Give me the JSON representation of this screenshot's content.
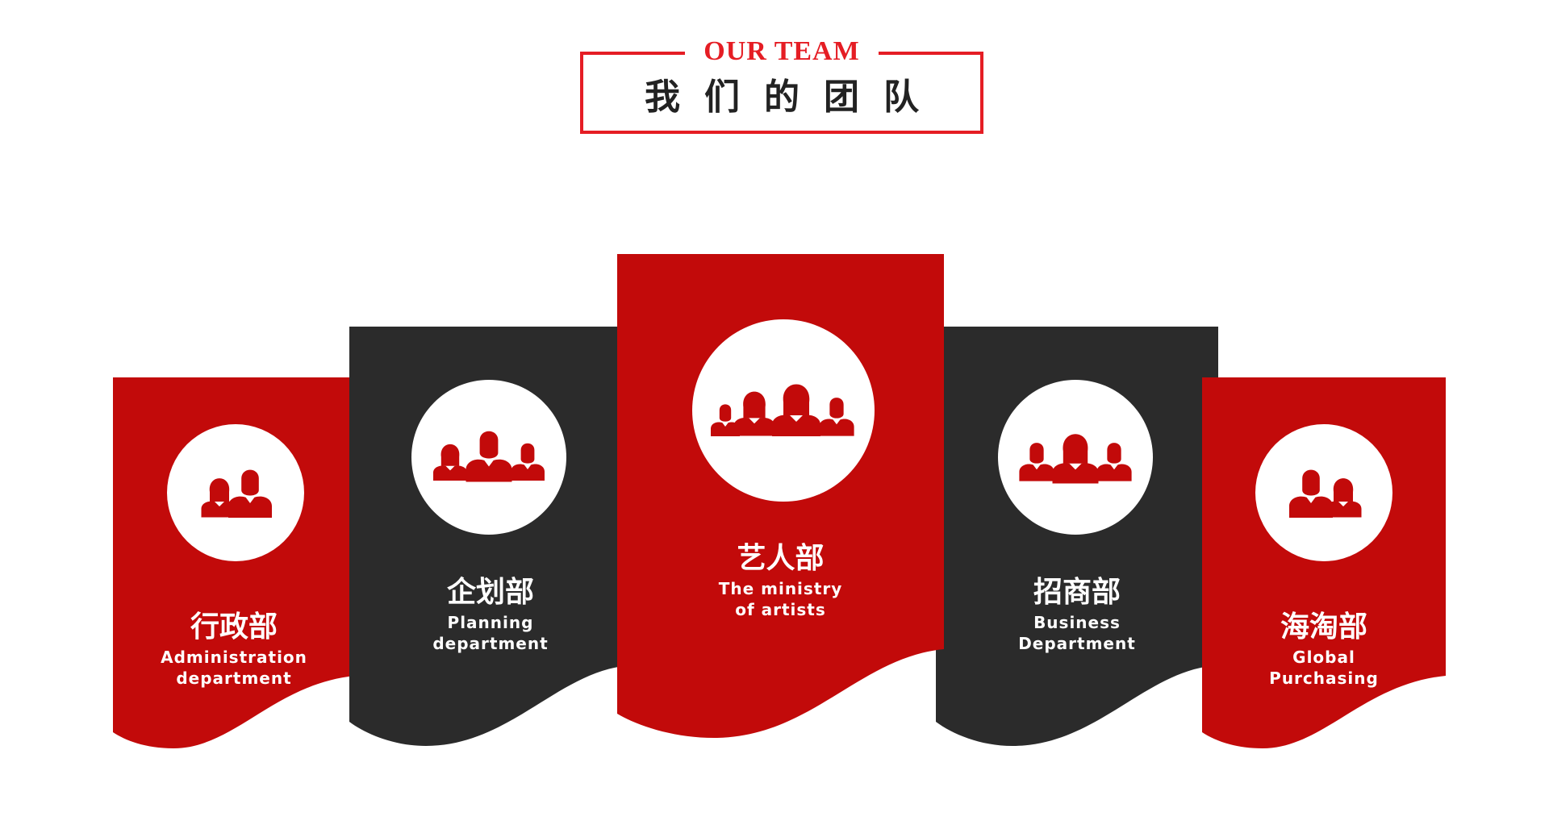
{
  "header": {
    "title_en": "OUR TEAM",
    "title_cn": "我们的团队",
    "accent_color": "#e51d24",
    "text_color": "#222222"
  },
  "departments": [
    {
      "name_cn": "行政部",
      "name_en_line1": "Administration",
      "name_en_line2": "department",
      "color": "#c20a0a",
      "icon": "two-people-icon"
    },
    {
      "name_cn": "企划部",
      "name_en_line1": "Planning",
      "name_en_line2": "department",
      "color": "#2b2b2b",
      "icon": "three-people-icon"
    },
    {
      "name_cn": "艺人部",
      "name_en_line1": "The ministry",
      "name_en_line2": "of artists",
      "color": "#c20a0a",
      "icon": "four-people-icon"
    },
    {
      "name_cn": "招商部",
      "name_en_line1": "Business",
      "name_en_line2": "Department",
      "color": "#2b2b2b",
      "icon": "three-people-icon"
    },
    {
      "name_cn": "海淘部",
      "name_en_line1": "Global",
      "name_en_line2": "Purchasing",
      "color": "#c20a0a",
      "icon": "two-people-icon"
    }
  ]
}
